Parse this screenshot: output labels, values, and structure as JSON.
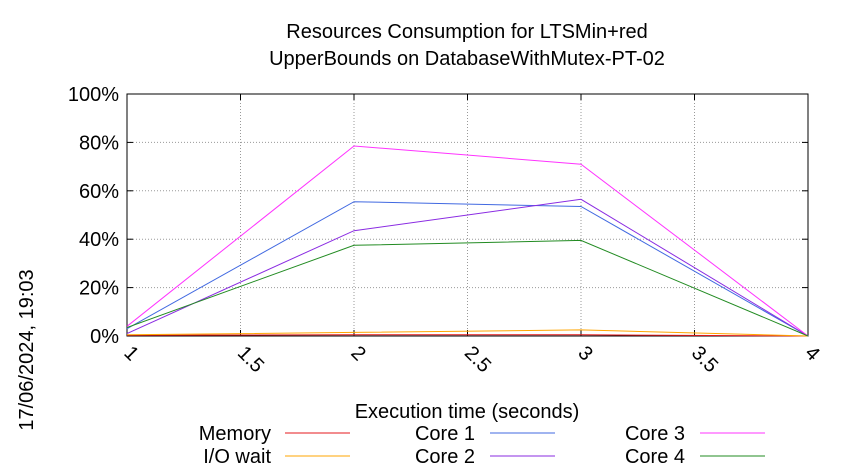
{
  "chart_data": {
    "type": "line",
    "title": "Resources Consumption for LTSMin+red",
    "subtitle": "UpperBounds on DatabaseWithMutex-PT-02",
    "xlabel": "Execution time (seconds)",
    "ylabel": "",
    "timestamp": "17/06/2024, 19:03",
    "x_ticks": [
      "1",
      "1.5",
      "2",
      "2.5",
      "3",
      "3.5",
      "4"
    ],
    "y_ticks": [
      "0%",
      "20%",
      "40%",
      "60%",
      "80%",
      "100%"
    ],
    "xlim": [
      1,
      4
    ],
    "ylim": [
      0,
      100
    ],
    "grid": true,
    "legend_position": "bottom",
    "series": [
      {
        "name": "Memory",
        "color": "#e41a1c",
        "x": [
          1,
          2,
          3,
          4
        ],
        "y": [
          0.3,
          0.5,
          0.5,
          0
        ]
      },
      {
        "name": "I/O wait",
        "color": "#ffa500",
        "x": [
          1,
          2,
          3,
          4
        ],
        "y": [
          0.5,
          1.5,
          2.5,
          0
        ]
      },
      {
        "name": "Core 1",
        "color": "#4169e1",
        "x": [
          1,
          2,
          3,
          4
        ],
        "y": [
          3,
          55.5,
          53.5,
          0
        ]
      },
      {
        "name": "Core 2",
        "color": "#8a2be2",
        "x": [
          1,
          2,
          3,
          4
        ],
        "y": [
          1,
          43.5,
          56.5,
          0
        ]
      },
      {
        "name": "Core 3",
        "color": "#ff33ff",
        "x": [
          1,
          2,
          3,
          4
        ],
        "y": [
          4,
          78.5,
          71,
          0
        ]
      },
      {
        "name": "Core 4",
        "color": "#228b22",
        "x": [
          1,
          2,
          3,
          4
        ],
        "y": [
          3.5,
          37.5,
          39.5,
          0
        ]
      }
    ]
  }
}
